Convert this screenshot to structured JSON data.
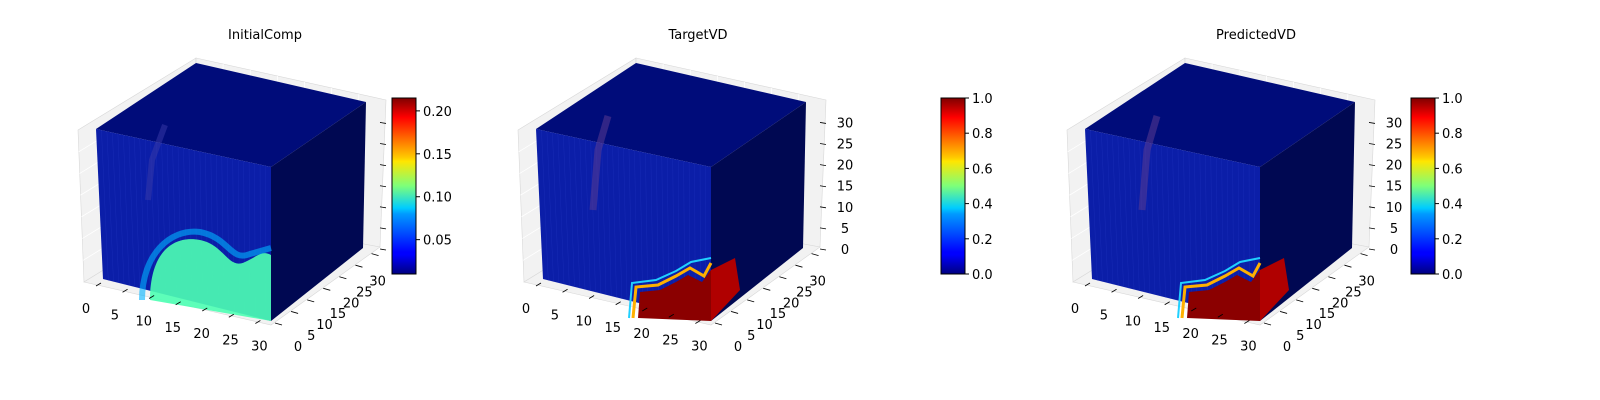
{
  "chart_data": [
    {
      "type": "voxel-3d",
      "title": "InitialComp",
      "axes": {
        "x_ticks": [
          "0",
          "5",
          "10",
          "15",
          "20",
          "25",
          "30"
        ],
        "y_ticks": [
          "0",
          "5",
          "10",
          "15",
          "20",
          "25",
          "30"
        ],
        "z_ticks": [],
        "range": [
          0,
          32
        ],
        "pane_color": "#f2f2f2",
        "grid": true
      },
      "colorbar": {
        "colormap": "jet",
        "min": 0.01,
        "max": 0.215,
        "ticks": [
          "0.05",
          "0.10",
          "0.15",
          "0.20"
        ],
        "tick_values": [
          0.05,
          0.1,
          0.15,
          0.2
        ]
      },
      "voxels": {
        "background_value": 0.01,
        "feature": "broad blob near bottom front face, faint vertical streak on upper left",
        "peak_value": 0.1
      }
    },
    {
      "type": "voxel-3d",
      "title": "TargetVD",
      "axes": {
        "x_ticks": [
          "0",
          "5",
          "10",
          "15",
          "20",
          "25",
          "30"
        ],
        "y_ticks": [
          "0",
          "5",
          "10",
          "15",
          "20",
          "25",
          "30"
        ],
        "z_ticks": [
          "0",
          "5",
          "10",
          "15",
          "20",
          "25",
          "30"
        ],
        "range": [
          0,
          32
        ],
        "pane_color": "#f2f2f2",
        "grid": true
      },
      "colorbar": {
        "colormap": "jet",
        "min": 0.0,
        "max": 1.0,
        "ticks": [
          "0.0",
          "0.2",
          "0.4",
          "0.6",
          "0.8",
          "1.0"
        ],
        "tick_values": [
          0.0,
          0.2,
          0.4,
          0.6,
          0.8,
          1.0
        ]
      },
      "voxels": {
        "background_value": 0.0,
        "feature": "saturated block at bottom front-right corner",
        "peak_value": 1.0
      }
    },
    {
      "type": "voxel-3d",
      "title": "PredictedVD",
      "axes": {
        "x_ticks": [
          "0",
          "5",
          "10",
          "15",
          "20",
          "25",
          "30"
        ],
        "y_ticks": [
          "0",
          "5",
          "10",
          "15",
          "20",
          "25",
          "30"
        ],
        "z_ticks": [
          "0",
          "5",
          "10",
          "15",
          "20",
          "25",
          "30"
        ],
        "range": [
          0,
          32
        ],
        "pane_color": "#f2f2f2",
        "grid": true
      },
      "colorbar": {
        "colormap": "jet",
        "min": 0.0,
        "max": 1.0,
        "ticks": [
          "0.0",
          "0.2",
          "0.4",
          "0.6",
          "0.8",
          "1.0"
        ],
        "tick_values": [
          0.0,
          0.2,
          0.4,
          0.6,
          0.8,
          1.0
        ]
      },
      "voxels": {
        "background_value": 0.0,
        "feature": "saturated block at bottom front-right corner",
        "peak_value": 1.0
      }
    }
  ]
}
